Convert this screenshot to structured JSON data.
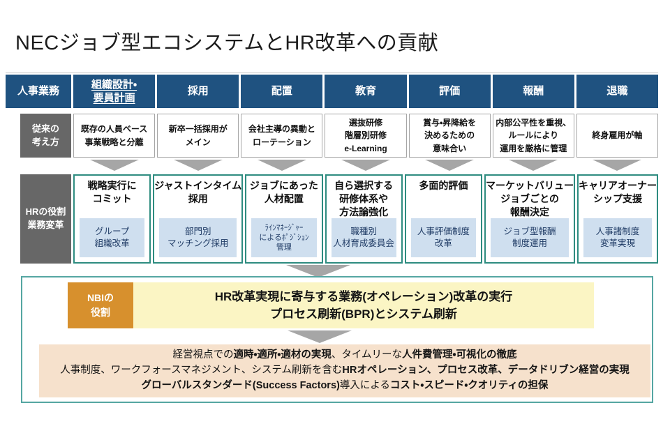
{
  "title": "NECジョブ型エコシステムとHR改革への貢献",
  "colors": {
    "header_blue": "#1f5280",
    "label_gray": "#676767",
    "reform_border_teal": "#2e8c80",
    "action_light_blue": "#cfdfef",
    "nbi_orange": "#d7902d",
    "nbi_yellow": "#fbf5c4",
    "summary_beige": "#f6e1cc",
    "frame_teal": "#55a6a2",
    "chevron_gray": "#a6a6a6"
  },
  "table": {
    "corner_label": "人事業務",
    "legacy_label": "従来の\n考え方",
    "reform_label": "HRの役割\n業務変革",
    "columns": [
      {
        "header": "組織設計・\n要員計画",
        "underline": true,
        "legacy": "既存の人員ベース\n事業戦略と分離",
        "reform_title": "戦略実行に\nコミット",
        "reform_action": "グループ\n組織改革"
      },
      {
        "header": "採用",
        "underline": false,
        "legacy": "新卒一括採用が\nメイン",
        "reform_title": "ジャストインタイム\n採用",
        "reform_action": "部門別\nマッチング採用"
      },
      {
        "header": "配置",
        "underline": false,
        "legacy": "会社主導の異動と\nローテーション",
        "reform_title": "ジョブにあった\n人材配置",
        "reform_action": "ﾗｲﾝﾏﾈｰｼﾞｬｰ\nによるﾎﾟｼﾞｼｮﾝ\n管理",
        "action_small": true
      },
      {
        "header": "教育",
        "underline": false,
        "legacy": "選抜研修\n階層別研修\ne-Learning",
        "reform_title": "自ら選択する\n研修体系や\n方法論強化",
        "reform_action": "職種別\n人材育成委員会"
      },
      {
        "header": "評価",
        "underline": false,
        "legacy": "賞与・昇降給を\n決めるための\n意味合い",
        "reform_title": "多面的評価",
        "reform_action": "人事評価制度\n改革"
      },
      {
        "header": "報酬",
        "underline": false,
        "legacy": "内部公平性を重視、\nルールにより\n運用を厳格に管理",
        "reform_title": "マーケットバリュー\nジョブごとの\n報酬決定",
        "reform_action": "ジョブ型報酬\n制度運用"
      },
      {
        "header": "退職",
        "underline": false,
        "legacy": "終身雇用が軸",
        "reform_title": "キャリアオーナー\nシップ支援",
        "reform_action": "人事諸制度\n変革実現"
      }
    ]
  },
  "nbi": {
    "label": "NBIの\n役割",
    "lines": [
      "HR改革実現に寄与する業務(オペレーション)改革の実行",
      "プロセス刷新(BPR)とシステム刷新"
    ]
  },
  "summary": {
    "lines": [
      [
        {
          "t": "経営視点での",
          "b": false
        },
        {
          "t": "適時・適所・適材の実現",
          "b": true
        },
        {
          "t": "、タイムリーな",
          "b": false
        },
        {
          "t": "人件費管理・可視化の徹底",
          "b": true
        }
      ],
      [
        {
          "t": "人事制度、ワークフォースマネジメント、システム刷新を含む",
          "b": false
        },
        {
          "t": "HRオペレーション、プロセス改革、データドリブン経営の実現",
          "b": true
        }
      ],
      [
        {
          "t": "グローバルスタンダード(Success Factors)",
          "b": true
        },
        {
          "t": "導入による",
          "b": false
        },
        {
          "t": "コスト・スピード・クオリティの担保",
          "b": true
        }
      ]
    ]
  }
}
